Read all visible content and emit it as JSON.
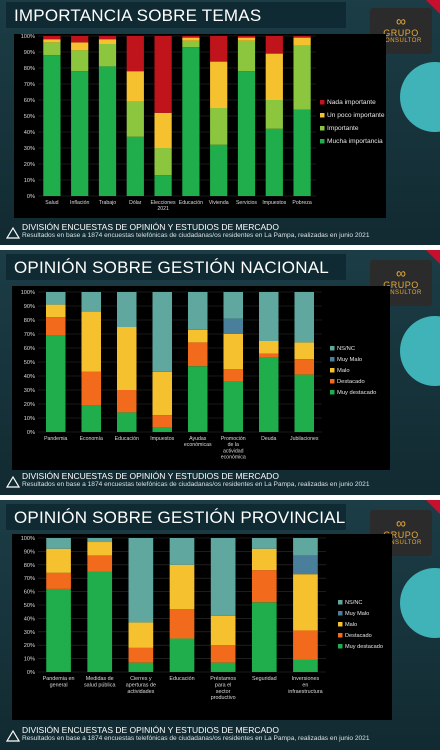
{
  "brand": {
    "logo_name": "GRUPO",
    "logo_sub": "CONSULTOR"
  },
  "footer": {
    "division": "DIVISIÓN ENCUESTAS DE OPINIÓN Y ESTUDIOS DE MERCADO",
    "note": "Resultados en base a 1874 encuestas telefónicas de ciudadanas/os residentes en La Pampa, realizadas en junio 2021"
  },
  "colors": {
    "green": "#1fae4b",
    "lightgreen": "#8cc63f",
    "yellow": "#f5c12e",
    "orange": "#f26b1d",
    "red": "#c0141c",
    "teal": "#5fa79f",
    "steel": "#4a7f9b"
  },
  "chart_data": [
    {
      "type": "bar",
      "stacked": true,
      "title": "IMPORTANCIA SOBRE TEMAS",
      "categories": [
        "Salud",
        "Inflación",
        "Trabajo",
        "Dólar",
        "Elecciones 2021",
        "Educación",
        "Vivienda",
        "Servicios",
        "Impuestos",
        "Pobreza"
      ],
      "ylim": [
        0,
        100
      ],
      "yticks": [
        "0%",
        "10%",
        "20%",
        "30%",
        "40%",
        "50%",
        "60%",
        "70%",
        "80%",
        "90%",
        "100%"
      ],
      "legend_position": "right",
      "series": [
        {
          "name": "Mucha importancia",
          "color": "#1fae4b",
          "values": [
            88,
            78,
            81,
            37,
            13,
            93,
            32,
            78,
            42,
            54
          ]
        },
        {
          "name": "Importante",
          "color": "#8cc63f",
          "values": [
            8,
            13,
            14,
            22,
            17,
            4,
            23,
            19,
            18,
            40
          ]
        },
        {
          "name": "Un poco importante",
          "color": "#f5c12e",
          "values": [
            2,
            5,
            3,
            19,
            22,
            2,
            29,
            2,
            29,
            5
          ]
        },
        {
          "name": "Nada importante",
          "color": "#c0141c",
          "values": [
            2,
            4,
            2,
            22,
            48,
            1,
            16,
            1,
            11,
            1
          ]
        }
      ]
    },
    {
      "type": "bar",
      "stacked": true,
      "title": "OPINIÓN SOBRE GESTIÓN NACIONAL",
      "categories": [
        "Pandemia",
        "Economía",
        "Educación",
        "Impuestos",
        "Ayudas económicas",
        "Promoción de la actividad económica",
        "Deuda",
        "Jubilaciones"
      ],
      "ylim": [
        0,
        100
      ],
      "yticks": [
        "0%",
        "10%",
        "20%",
        "30%",
        "40%",
        "50%",
        "60%",
        "70%",
        "80%",
        "90%",
        "100%"
      ],
      "legend_position": "right",
      "series": [
        {
          "name": "Muy destacado",
          "color": "#1fae4b",
          "values": [
            69,
            19,
            14,
            3,
            47,
            36,
            53,
            41
          ]
        },
        {
          "name": "Destacado",
          "color": "#f26b1d",
          "values": [
            13,
            24,
            16,
            9,
            17,
            9,
            3,
            11
          ]
        },
        {
          "name": "Malo",
          "color": "#f5c12e",
          "values": [
            9,
            43,
            45,
            31,
            9,
            25,
            9,
            12
          ]
        },
        {
          "name": "Muy Malo",
          "color": "#4a7f9b",
          "values": [
            0,
            0,
            0,
            0,
            0,
            11,
            0,
            0
          ]
        },
        {
          "name": "NS/NC",
          "color": "#5fa79f",
          "values": [
            9,
            14,
            25,
            57,
            27,
            19,
            35,
            36
          ]
        }
      ]
    },
    {
      "type": "bar",
      "stacked": true,
      "title": "OPINIÓN SOBRE GESTIÓN PROVINCIAL",
      "categories": [
        "Pandemia en general",
        "Medidas de salud pública",
        "Cierres y aperturas de actividades",
        "Educación",
        "Préstamos para el sector productivo",
        "Seguridad",
        "Inversiones en infraestructura"
      ],
      "ylim": [
        0,
        100
      ],
      "yticks": [
        "0%",
        "10%",
        "20%",
        "30%",
        "40%",
        "50%",
        "60%",
        "70%",
        "80%",
        "90%",
        "100%"
      ],
      "legend_position": "right",
      "series": [
        {
          "name": "Muy destacado",
          "color": "#1fae4b",
          "values": [
            62,
            75,
            7,
            25,
            7,
            52,
            9
          ]
        },
        {
          "name": "Destacado",
          "color": "#f26b1d",
          "values": [
            12,
            12,
            11,
            22,
            13,
            24,
            22
          ]
        },
        {
          "name": "Malo",
          "color": "#f5c12e",
          "values": [
            18,
            10,
            19,
            33,
            22,
            16,
            42
          ]
        },
        {
          "name": "Muy Malo",
          "color": "#4a7f9b",
          "values": [
            0,
            0,
            0,
            0,
            0,
            0,
            14
          ]
        },
        {
          "name": "NS/NC",
          "color": "#5fa79f",
          "values": [
            8,
            3,
            63,
            20,
            58,
            8,
            13
          ]
        }
      ]
    }
  ]
}
